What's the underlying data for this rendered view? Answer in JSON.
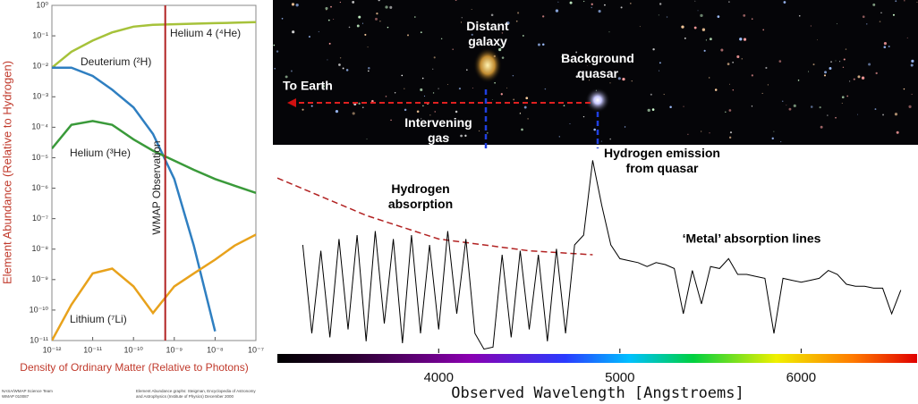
{
  "chart_data": [
    {
      "type": "line",
      "log_x": true,
      "log_y": true,
      "x_label": "Density of Ordinary Matter (Relative to Photons)",
      "y_label": "Element Abundance (Relative to Hydrogen)",
      "x": [
        1e-12,
        3e-12,
        1e-11,
        3e-11,
        1e-10,
        3e-10,
        1e-09,
        3e-09,
        1e-08,
        3e-08,
        1e-07
      ],
      "series": [
        {
          "name": "Helium 4 (⁴He)",
          "color": "#a6c23a",
          "values": [
            0.009,
            0.03,
            0.07,
            0.13,
            0.2,
            0.23,
            0.24,
            0.25,
            0.26,
            0.27,
            0.28
          ]
        },
        {
          "name": "Deuterium (²H)",
          "color": "#2f7fc1",
          "values": [
            0.009,
            0.009,
            0.0048,
            0.0017,
            0.00045,
            6e-05,
            2e-06,
            1.3e-08,
            2e-11,
            null,
            null
          ]
        },
        {
          "name": "Helium (³He)",
          "color": "#3a9a3a",
          "values": [
            2e-05,
            0.00012,
            0.00016,
            0.00012,
            4e-05,
            1.7e-05,
            8e-06,
            4e-06,
            2e-06,
            1.2e-06,
            7e-07
          ]
        },
        {
          "name": "Lithium (⁷Li)",
          "color": "#e8a21c",
          "values": [
            1e-11,
            1.5e-10,
            1.6e-09,
            2.3e-09,
            6e-10,
            8e-11,
            6e-10,
            1.6e-09,
            4.5e-09,
            1.3e-08,
            3e-08
          ]
        }
      ],
      "xlim": [
        1e-12,
        1e-07
      ],
      "ylim": [
        1e-11,
        1
      ],
      "xticks": [
        {
          "value": 1e-12,
          "label": "10⁻¹²"
        },
        {
          "value": 1e-11,
          "label": "10⁻¹¹"
        },
        {
          "value": 1e-10,
          "label": "10⁻¹⁰"
        },
        {
          "value": 1e-09,
          "label": "10⁻⁹"
        },
        {
          "value": 1e-08,
          "label": "10⁻⁸"
        },
        {
          "value": 1e-07,
          "label": "10⁻⁷"
        }
      ],
      "yticks": [
        {
          "value": 1,
          "label": "10⁰"
        },
        {
          "value": 0.1,
          "label": "10⁻¹"
        },
        {
          "value": 0.01,
          "label": "10⁻²"
        },
        {
          "value": 0.001,
          "label": "10⁻³"
        },
        {
          "value": 0.0001,
          "label": "10⁻⁴"
        },
        {
          "value": 1e-05,
          "label": "10⁻⁵"
        },
        {
          "value": 1e-06,
          "label": "10⁻⁶"
        },
        {
          "value": 1e-07,
          "label": "10⁻⁷"
        },
        {
          "value": 1e-08,
          "label": "10⁻⁸"
        },
        {
          "value": 1e-09,
          "label": "10⁻⁹"
        },
        {
          "value": 1e-10,
          "label": "10⁻¹⁰"
        },
        {
          "value": 1e-11,
          "label": "10⁻¹¹"
        }
      ],
      "observation": {
        "label": "WMAP Observation",
        "x": 6e-10,
        "color": "#b22222"
      },
      "credits": [
        "NASA/WMAP Science Team",
        "WMAP 010087",
        "Element Abundance graphs: Steigman, Encyclopedia of Astronomy",
        "and Astrophysics (Institute of Physics) December 2000"
      ]
    },
    {
      "type": "spectrum",
      "x_label": "Observed Wavelength [Angstroems]",
      "x": [
        3250,
        3300,
        3350,
        3400,
        3450,
        3500,
        3550,
        3600,
        3650,
        3700,
        3750,
        3800,
        3850,
        3900,
        3950,
        4000,
        4050,
        4100,
        4150,
        4200,
        4250,
        4300,
        4350,
        4400,
        4450,
        4500,
        4550,
        4600,
        4650,
        4700,
        4750,
        4800,
        4850,
        4900,
        4950,
        5000,
        5050,
        5100,
        5150,
        5200,
        5250,
        5300,
        5350,
        5400,
        5450,
        5500,
        5550,
        5600,
        5650,
        5700,
        5750,
        5800,
        5850,
        5900,
        5950,
        6000,
        6050,
        6100,
        6150,
        6200,
        6250,
        6300,
        6350,
        6400,
        6450,
        6500,
        6550
      ],
      "values": [
        55,
        10,
        52,
        8,
        58,
        12,
        60,
        6,
        62,
        15,
        58,
        5,
        60,
        10,
        55,
        12,
        62,
        20,
        58,
        10,
        2,
        3,
        50,
        8,
        52,
        12,
        50,
        6,
        53,
        10,
        55,
        60,
        98,
        75,
        55,
        48,
        47,
        46,
        44,
        46,
        45,
        43,
        20,
        42,
        25,
        44,
        43,
        48,
        40,
        40,
        39,
        38,
        10,
        38,
        37,
        36,
        37,
        38,
        42,
        40,
        35,
        34,
        34,
        33,
        33,
        20,
        32
      ],
      "color": "#000000",
      "continuum": {
        "x": [
          3110,
          3600,
          4000,
          4500,
          4850
        ],
        "values": [
          89,
          70,
          58,
          52,
          50
        ],
        "color": "#b22222"
      },
      "xlim": [
        3110,
        6640
      ],
      "ylim": [
        0,
        100
      ],
      "xticks": [
        4000,
        5000,
        6000
      ],
      "annotations": [
        "Distant galaxy",
        "Background quasar",
        "To Earth",
        "Intervening gas",
        "Hydrogen emission from quasar",
        "Hydrogen absorption",
        "‘Metal’ absorption lines"
      ]
    }
  ]
}
